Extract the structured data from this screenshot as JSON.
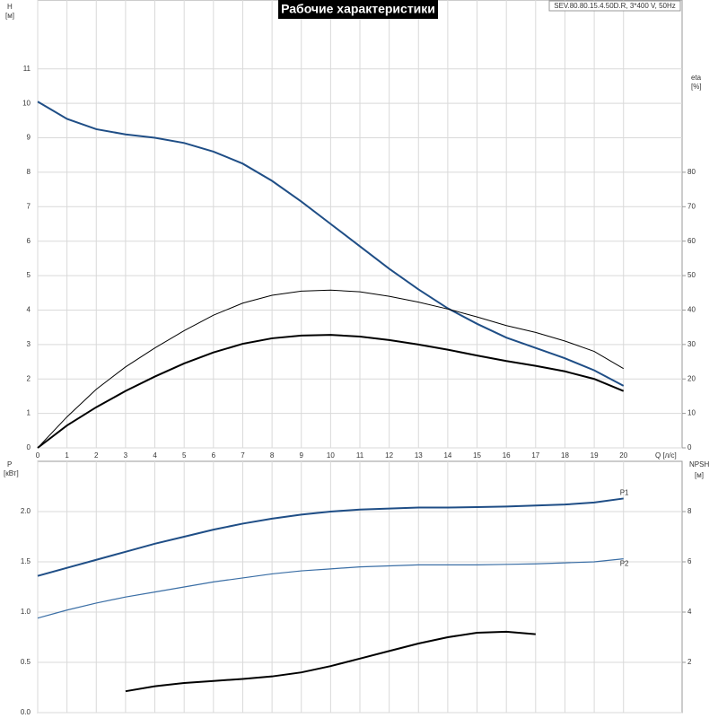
{
  "chart_data": [
    {
      "type": "line",
      "title": "Рабочие характеристики",
      "subtitle": "SEV.80.80.15.4.50D.R, 3*400 V, 50Hz",
      "ylabel": "H",
      "yunit": "[м]",
      "y2label": "eta",
      "y2unit": "[%]",
      "xlabel": "Q [л/с]",
      "x": [
        0,
        1,
        2,
        3,
        4,
        5,
        6,
        7,
        8,
        9,
        10,
        11,
        12,
        13,
        14,
        15,
        16,
        17,
        18,
        19,
        20
      ],
      "xlim": [
        0,
        22
      ],
      "xticks": [
        0,
        1,
        2,
        3,
        4,
        5,
        6,
        7,
        8,
        9,
        10,
        11,
        12,
        13,
        14,
        15,
        16,
        17,
        18,
        19,
        20
      ],
      "ylim": [
        0,
        13
      ],
      "yticks": [
        0,
        1,
        2,
        3,
        4,
        5,
        6,
        7,
        8,
        9,
        10,
        11
      ],
      "y2lim": [
        0,
        130
      ],
      "y2ticks": [
        0,
        10,
        20,
        30,
        40,
        50,
        60,
        70,
        80
      ],
      "grid": true,
      "series": [
        {
          "color": "#1f4e86",
          "line_width": 2,
          "values": [
            10.05,
            9.55,
            9.25,
            9.1,
            9.0,
            8.85,
            8.6,
            8.25,
            7.75,
            7.15,
            6.5,
            5.85,
            5.2,
            4.6,
            4.05,
            3.6,
            3.2,
            2.9,
            2.6,
            2.25,
            1.8
          ]
        },
        {
          "color": "#000000",
          "line_width": 1,
          "axis": "y2",
          "values": [
            0,
            9,
            17,
            23.5,
            29,
            34,
            38.5,
            42,
            44.3,
            45.5,
            45.8,
            45.3,
            44,
            42.3,
            40.3,
            38,
            35.5,
            33.5,
            31,
            28,
            23
          ]
        },
        {
          "color": "#000000",
          "line_width": 2,
          "axis": "y2",
          "values": [
            0,
            6.5,
            11.8,
            16.5,
            20.7,
            24.5,
            27.7,
            30.2,
            31.8,
            32.6,
            32.8,
            32.3,
            31.3,
            30,
            28.5,
            26.8,
            25.2,
            23.8,
            22.2,
            20,
            16.5
          ]
        }
      ]
    },
    {
      "type": "line",
      "ylabel": "P",
      "yunit": "[кВт]",
      "y2label": "NPSH",
      "y2unit": "[м]",
      "x": [
        0,
        1,
        2,
        3,
        4,
        5,
        6,
        7,
        8,
        9,
        10,
        11,
        12,
        13,
        14,
        15,
        16,
        17,
        18,
        19,
        20
      ],
      "xlim": [
        0,
        22
      ],
      "xticks": [
        0,
        1,
        2,
        3,
        4,
        5,
        6,
        7,
        8,
        9,
        10,
        11,
        12,
        13,
        14,
        15,
        16,
        17,
        18,
        19,
        20
      ],
      "show_xtick_labels": false,
      "ylim": [
        0,
        2.5
      ],
      "yticks": [
        {
          "value": 0,
          "label": "0.0"
        },
        0.5,
        {
          "value": 1,
          "label": "1.0"
        },
        1.5,
        {
          "value": 2,
          "label": "2.0"
        }
      ],
      "y2lim": [
        0,
        10
      ],
      "y2ticks": [
        2,
        4,
        6,
        8
      ],
      "grid": true,
      "series": [
        {
          "name": "P1",
          "color": "#1f4e86",
          "line_width": 2,
          "values": [
            1.36,
            1.44,
            1.52,
            1.6,
            1.68,
            1.75,
            1.82,
            1.88,
            1.93,
            1.97,
            2.0,
            2.02,
            2.03,
            2.04,
            2.04,
            2.045,
            2.05,
            2.06,
            2.07,
            2.09,
            2.13
          ]
        },
        {
          "name": "P2",
          "color": "#3a6ea5",
          "line_width": 1.2,
          "values": [
            0.94,
            1.02,
            1.09,
            1.15,
            1.2,
            1.25,
            1.3,
            1.34,
            1.38,
            1.41,
            1.43,
            1.45,
            1.46,
            1.47,
            1.47,
            1.47,
            1.475,
            1.48,
            1.49,
            1.5,
            1.53
          ]
        },
        {
          "color": "#000000",
          "line_width": 2,
          "axis": "y2",
          "values": [
            null,
            null,
            null,
            0.85,
            1.05,
            1.18,
            1.26,
            1.34,
            1.44,
            1.6,
            1.85,
            2.15,
            2.45,
            2.75,
            3.0,
            3.18,
            3.22,
            3.12,
            null,
            null,
            null
          ]
        }
      ]
    }
  ]
}
